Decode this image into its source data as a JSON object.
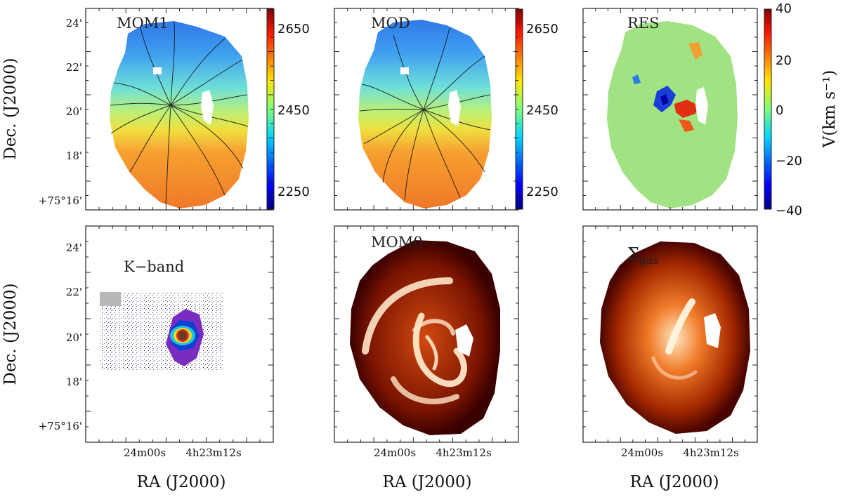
{
  "chart_data": {
    "type": "heatmap",
    "layout": "2 rows x 3 columns of sky maps",
    "xlabel": "RA (J2000)",
    "ylabel": "Dec. (J2000)",
    "x_ticks": [
      "24m00s",
      "4h23m12s"
    ],
    "y_ticks": [
      "24'",
      "22'",
      "20'",
      "18'",
      "+75°16'"
    ],
    "panels": [
      {
        "key": "mom1",
        "title": "MOM1",
        "colormap": "jet",
        "colorbar": {
          "ticks": [
            "2650",
            "2450",
            "2250"
          ],
          "range": [
            2190,
            2700
          ],
          "label": ""
        }
      },
      {
        "key": "mod",
        "title": "MOD",
        "colormap": "jet",
        "colorbar": {
          "ticks": [
            "2650",
            "2450",
            "2250"
          ],
          "range": [
            2190,
            2700
          ],
          "label": ""
        }
      },
      {
        "key": "res",
        "title": "RES",
        "colormap": "jet",
        "colorbar": {
          "ticks": [
            "40",
            "20",
            "0",
            "−20",
            "−40"
          ],
          "range": [
            -40,
            40
          ],
          "label": "V(km s⁻¹)"
        }
      },
      {
        "key": "kband",
        "title": "K−band",
        "colormap": "contour-rainbow"
      },
      {
        "key": "mom0",
        "title": "MOM0",
        "colormap": "afmhot"
      },
      {
        "key": "sigma",
        "title": "Σ",
        "title_sub": "gas",
        "colormap": "afmhot"
      }
    ]
  }
}
